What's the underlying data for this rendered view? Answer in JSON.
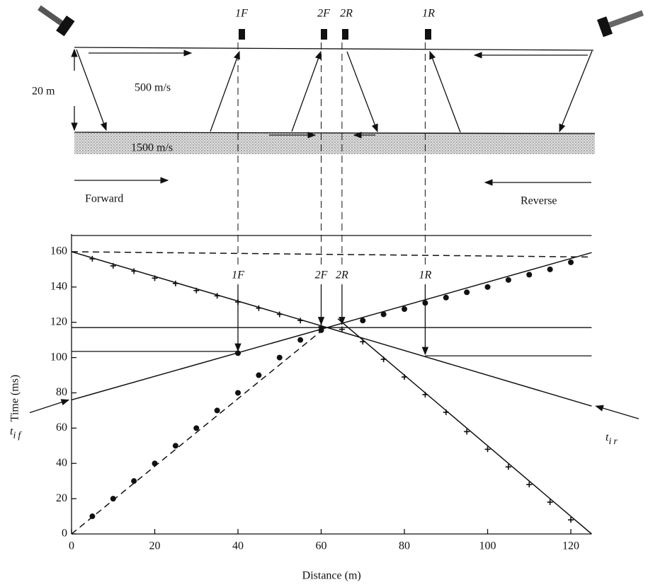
{
  "diagram": {
    "geophones": [
      "1F",
      "2F",
      "2R",
      "1R"
    ],
    "thickness": "20 m",
    "upper_velocity": "500 m/s",
    "lower_velocity": "1500 m/s",
    "forward": "Forward",
    "reverse": "Reverse"
  },
  "chart_data": {
    "type": "line",
    "xlabel": "Distance (m)",
    "ylabel": "Time (ms)",
    "xlim": [
      0,
      125
    ],
    "ylim": [
      0,
      170
    ],
    "xticks": [
      0,
      20,
      40,
      60,
      80,
      100,
      120
    ],
    "yticks": [
      0,
      20,
      40,
      60,
      80,
      100,
      120,
      140,
      160
    ],
    "series": [
      {
        "style": "dashed",
        "color": "#111",
        "x": [
          0,
          60.5
        ],
        "values": [
          0,
          116
        ]
      },
      {
        "style": "solid",
        "color": "#111",
        "x": [
          0,
          125
        ],
        "values": [
          76,
          159.5
        ]
      },
      {
        "style": "solid",
        "color": "#111",
        "x": [
          0,
          125
        ],
        "values": [
          160,
          72.5
        ]
      },
      {
        "style": "solid",
        "color": "#111",
        "x": [
          64,
          125
        ],
        "values": [
          122,
          0
        ]
      },
      {
        "style": "dashed",
        "color": "#111",
        "x": [
          0,
          125
        ],
        "values": [
          160,
          157
        ]
      },
      {
        "style": "dot",
        "color": "#111",
        "x": [
          5,
          10,
          15,
          20,
          25,
          30,
          35,
          40,
          45,
          50,
          55,
          40,
          60,
          70,
          75,
          80,
          85,
          90,
          95,
          100,
          105,
          110,
          115,
          120
        ],
        "values": [
          10,
          20,
          30,
          40,
          50,
          60,
          70,
          80,
          90,
          100,
          110,
          102.5,
          115.5,
          121,
          124.5,
          127.5,
          131,
          134,
          137,
          140,
          144,
          147,
          150,
          154
        ]
      },
      {
        "style": "plus",
        "color": "#111",
        "x": [
          5,
          10,
          15,
          20,
          25,
          30,
          35,
          40,
          45,
          50,
          55,
          60,
          65,
          70,
          75,
          80,
          85,
          90,
          95,
          100,
          105,
          110,
          115,
          120
        ],
        "values": [
          156,
          152,
          149,
          145,
          142,
          138,
          135,
          131.5,
          128,
          124.5,
          121,
          117.5,
          116,
          109,
          99,
          89,
          79,
          69,
          58,
          48,
          38,
          28,
          18,
          8
        ]
      }
    ],
    "reference_lines": [
      {
        "y": 117,
        "x": [
          0,
          125
        ]
      },
      {
        "y": 103.5,
        "x": [
          0,
          40
        ]
      },
      {
        "y": 101,
        "x": [
          85,
          125
        ]
      }
    ],
    "annotations": [
      {
        "text": "1F",
        "x": 40,
        "y": 103
      },
      {
        "text": "2F",
        "x": 60,
        "y": 118
      },
      {
        "text": "2R",
        "x": 65,
        "y": 118
      },
      {
        "text": "1R",
        "x": 85,
        "y": 101
      }
    ],
    "intercepts": [
      {
        "text": "t",
        "sub": "if",
        "y": 76
      },
      {
        "text": "t",
        "sub": "ir",
        "y": 72.5
      }
    ]
  }
}
